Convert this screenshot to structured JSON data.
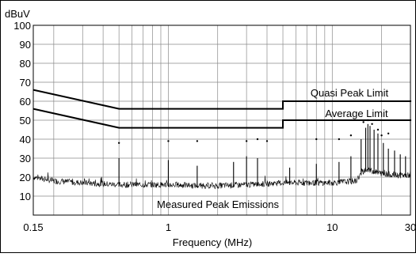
{
  "chart_data": {
    "type": "line",
    "title": "",
    "xlabel": "Frequency (MHz)",
    "ylabel": "dBuV",
    "x_scale": "log",
    "xlim": [
      0.15,
      30
    ],
    "ylim": [
      0,
      100
    ],
    "grid": true,
    "x_tick_labels": [
      {
        "value": 0.15,
        "label": "0.15"
      },
      {
        "value": 1,
        "label": "1"
      },
      {
        "value": 10,
        "label": "10"
      },
      {
        "value": 30,
        "label": "30"
      }
    ],
    "y_tick_labels": [
      "10",
      "20",
      "30",
      "40",
      "50",
      "60",
      "70",
      "80",
      "90",
      "100"
    ],
    "limit_lines": [
      {
        "label": "Quasi Peak Limit",
        "x": [
          0.15,
          0.5,
          5,
          5,
          30
        ],
        "y": [
          66,
          56,
          56,
          60,
          60
        ]
      },
      {
        "label": "Average Limit",
        "x": [
          0.15,
          0.5,
          5,
          5,
          30
        ],
        "y": [
          56,
          46,
          46,
          50,
          50
        ]
      }
    ],
    "noise_floor": {
      "label": "Measured Peak Emissions",
      "x": [
        0.15,
        0.2,
        0.3,
        0.5,
        1,
        1.5,
        2,
        3,
        4,
        5,
        7,
        10,
        14,
        15,
        16,
        18,
        20,
        25,
        30
      ],
      "y": [
        20,
        18,
        17,
        16,
        16,
        15.5,
        15.5,
        16,
        16.5,
        17,
        17,
        17,
        18,
        22,
        24,
        23,
        22,
        21,
        21
      ]
    },
    "emission_peaks": [
      {
        "x": 0.5,
        "y": 30
      },
      {
        "x": 1.0,
        "y": 29
      },
      {
        "x": 1.5,
        "y": 26
      },
      {
        "x": 2.5,
        "y": 28
      },
      {
        "x": 3.0,
        "y": 31
      },
      {
        "x": 3.5,
        "y": 30
      },
      {
        "x": 5.5,
        "y": 25
      },
      {
        "x": 8.0,
        "y": 27
      },
      {
        "x": 11.0,
        "y": 28
      },
      {
        "x": 13.0,
        "y": 31
      },
      {
        "x": 15.0,
        "y": 40
      },
      {
        "x": 16.0,
        "y": 46
      },
      {
        "x": 16.5,
        "y": 48
      },
      {
        "x": 17.0,
        "y": 47
      },
      {
        "x": 18.0,
        "y": 45
      },
      {
        "x": 19.0,
        "y": 43
      },
      {
        "x": 20.5,
        "y": 38
      },
      {
        "x": 22.0,
        "y": 35
      },
      {
        "x": 24.0,
        "y": 34
      },
      {
        "x": 26.0,
        "y": 32
      },
      {
        "x": 28.0,
        "y": 31
      }
    ],
    "marker_points": [
      {
        "x": 0.5,
        "y": 38
      },
      {
        "x": 1.0,
        "y": 39
      },
      {
        "x": 1.5,
        "y": 39
      },
      {
        "x": 3.0,
        "y": 39
      },
      {
        "x": 3.5,
        "y": 40
      },
      {
        "x": 4.0,
        "y": 39
      },
      {
        "x": 8.0,
        "y": 40
      },
      {
        "x": 11.0,
        "y": 40
      },
      {
        "x": 13.0,
        "y": 42
      },
      {
        "x": 15.5,
        "y": 49
      },
      {
        "x": 16.5,
        "y": 50
      },
      {
        "x": 17.5,
        "y": 48
      },
      {
        "x": 19.0,
        "y": 45
      },
      {
        "x": 20.0,
        "y": 42
      },
      {
        "x": 22.0,
        "y": 43
      },
      {
        "x": 30.0,
        "y": 60
      },
      {
        "x": 30.0,
        "y": 50
      }
    ]
  }
}
